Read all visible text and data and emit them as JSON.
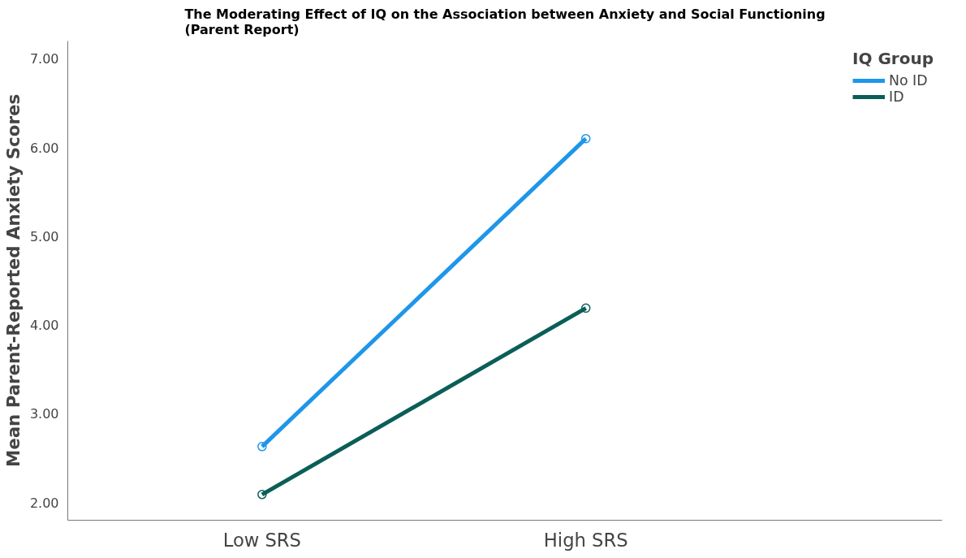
{
  "chart_data": {
    "type": "line",
    "title": "The Moderating Effect of IQ on the Association between Anxiety and Social Functioning (Parent Report)",
    "ylabel": "Mean Parent-Reported Anxiety Scores",
    "legend_title": "IQ Group",
    "categories": [
      "Low SRS",
      "High SRS"
    ],
    "series": [
      {
        "name": "No ID",
        "color": "#1e96ea",
        "values": [
          2.63,
          6.1
        ]
      },
      {
        "name": "ID",
        "color": "#0b5e58",
        "values": [
          2.09,
          4.19
        ]
      }
    ],
    "ylim": [
      1.8,
      7.2
    ],
    "yticks": [
      {
        "value": 2,
        "label": "2.00"
      },
      {
        "value": 3,
        "label": "3.00"
      },
      {
        "value": 4,
        "label": "4.00"
      },
      {
        "value": 5,
        "label": "5.00"
      },
      {
        "value": 6,
        "label": "6.00"
      },
      {
        "value": 7,
        "label": "7.00"
      }
    ],
    "grid": false,
    "legend": "top right",
    "marker": "circle",
    "line_style": "solid"
  }
}
